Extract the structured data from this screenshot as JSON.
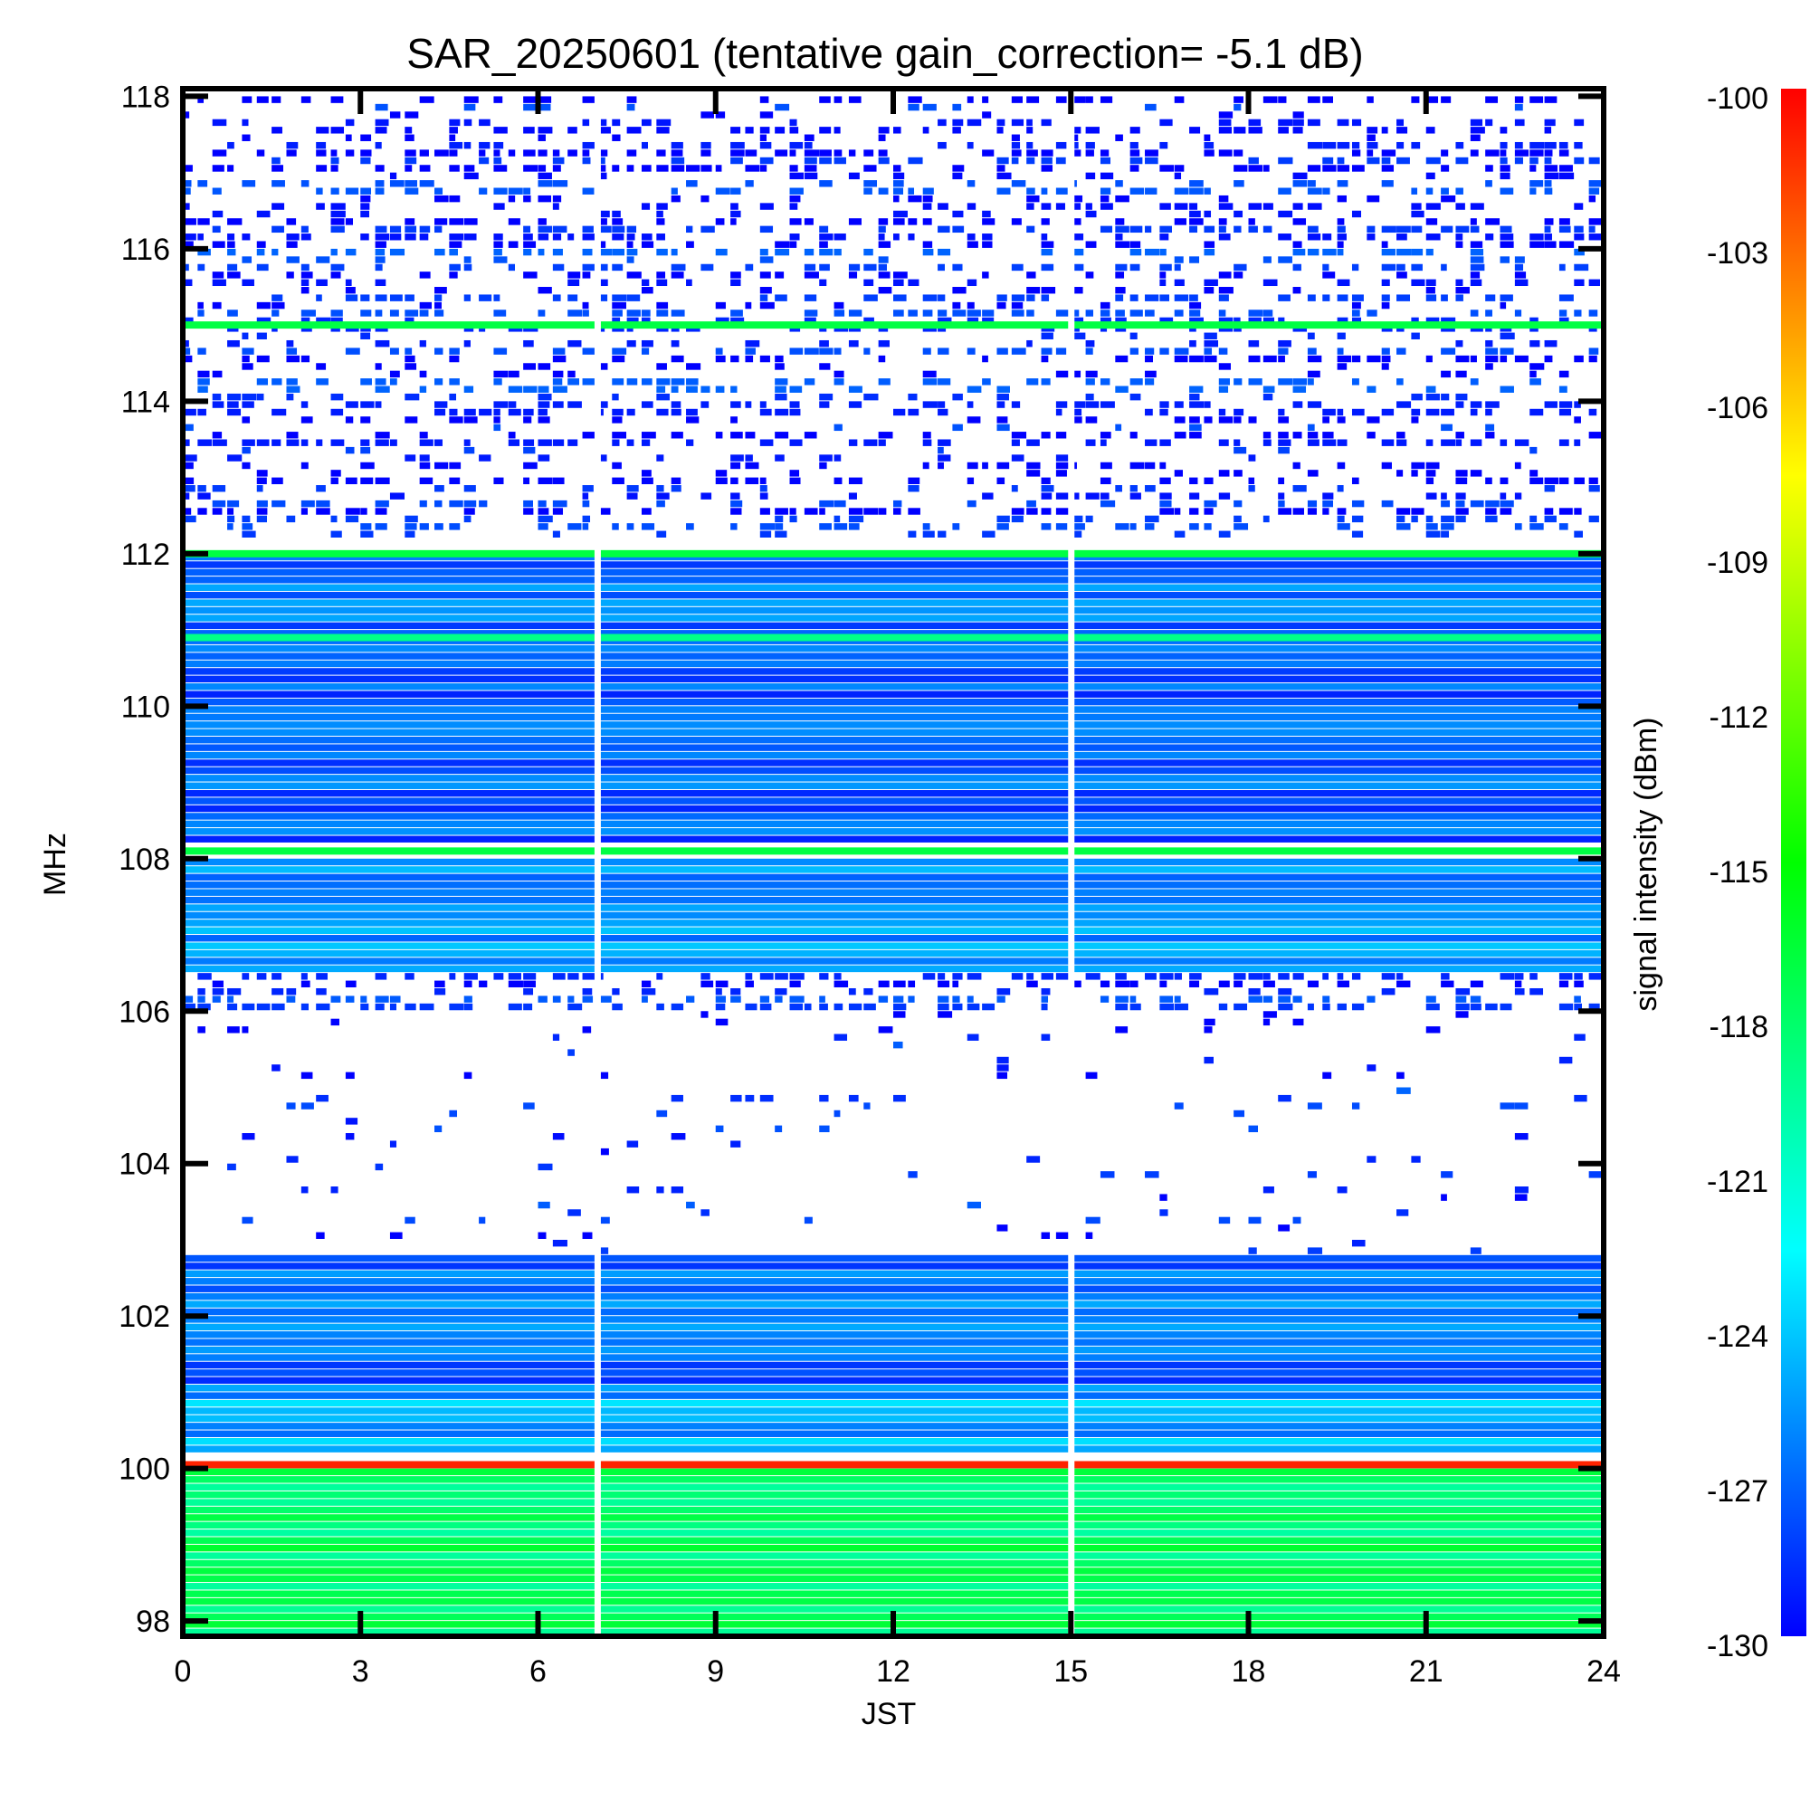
{
  "chart_data": {
    "type": "heatmap",
    "title": "SAR_20250601 (tentative gain_correction= -5.1 dB)",
    "xlabel": "JST",
    "ylabel": "MHz",
    "xlim": [
      0,
      24
    ],
    "ylim": [
      97.8,
      118.1
    ],
    "x_ticks": [
      "0",
      "3",
      "6",
      "9",
      "12",
      "15",
      "18",
      "21",
      "24"
    ],
    "y_ticks": [
      "118",
      "116",
      "114",
      "112",
      "110",
      "108",
      "106",
      "104",
      "102",
      "100",
      "98"
    ],
    "colorbar": {
      "label": "signal intensity (dBm)",
      "min": -130,
      "max": -100,
      "ticks": [
        "-100",
        "-103",
        "-106",
        "-109",
        "-112",
        "-115",
        "-118",
        "-121",
        "-124",
        "-127",
        "-130"
      ],
      "colormap": [
        "#0000ff",
        "#00ffff",
        "#00ff00",
        "#ffff00",
        "#ff0000"
      ]
    },
    "data_gaps_jst": [
      7.0,
      15.0
    ],
    "bands": [
      {
        "freq_range_mhz": [
          112.2,
          118.0
        ],
        "level_dbm": -129,
        "density": "sparse"
      },
      {
        "freq_range_mhz": [
          108.2,
          112.0
        ],
        "level_dbm": -127,
        "density": "dense"
      },
      {
        "freq_range_mhz": [
          106.5,
          108.0
        ],
        "level_dbm": -126,
        "density": "dense"
      },
      {
        "freq_range_mhz": [
          106.0,
          106.5
        ],
        "level_dbm": -129,
        "density": "medium"
      },
      {
        "freq_range_mhz": [
          102.8,
          106.0
        ],
        "level_dbm": -129,
        "density": "very-sparse"
      },
      {
        "freq_range_mhz": [
          101.0,
          102.8
        ],
        "level_dbm": -127,
        "density": "dense"
      },
      {
        "freq_range_mhz": [
          100.2,
          101.0
        ],
        "level_dbm": -125,
        "density": "dense"
      },
      {
        "freq_range_mhz": [
          97.8,
          100.0
        ],
        "level_dbm": -118,
        "density": "dense"
      }
    ],
    "strong_lines": [
      {
        "freq_mhz": 115.0,
        "level_dbm": -117
      },
      {
        "freq_mhz": 112.0,
        "level_dbm": -117
      },
      {
        "freq_mhz": 110.9,
        "level_dbm": -119
      },
      {
        "freq_mhz": 108.1,
        "level_dbm": -117
      },
      {
        "freq_mhz": 100.05,
        "level_dbm": -101
      }
    ]
  }
}
